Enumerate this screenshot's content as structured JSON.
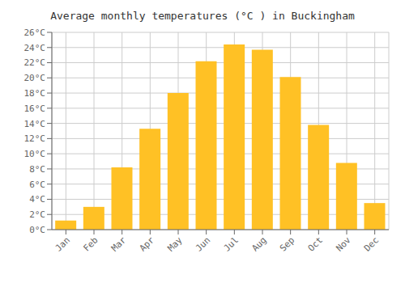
{
  "chart_data": {
    "type": "bar",
    "title": "Average monthly temperatures (°C ) in Buckingham",
    "categories": [
      "Jan",
      "Feb",
      "Mar",
      "Apr",
      "May",
      "Jun",
      "Jul",
      "Aug",
      "Sep",
      "Oct",
      "Nov",
      "Dec"
    ],
    "values": [
      1.2,
      3.0,
      8.2,
      13.3,
      18.0,
      22.2,
      24.4,
      23.7,
      20.1,
      13.8,
      8.8,
      3.5
    ],
    "color": "#FFC125",
    "ylim": [
      0,
      26
    ],
    "yticks": [
      {
        "value": 0,
        "label": "0°C"
      },
      {
        "value": 2,
        "label": "2°C"
      },
      {
        "value": 4,
        "label": "4°C"
      },
      {
        "value": 6,
        "label": "6°C"
      },
      {
        "value": 8,
        "label": "8°C"
      },
      {
        "value": 10,
        "label": "10°C"
      },
      {
        "value": 12,
        "label": "12°C"
      },
      {
        "value": 14,
        "label": "14°C"
      },
      {
        "value": 16,
        "label": "16°C"
      },
      {
        "value": 18,
        "label": "18°C"
      },
      {
        "value": 20,
        "label": "20°C"
      },
      {
        "value": 22,
        "label": "22°C"
      },
      {
        "value": 24,
        "label": "24°C"
      },
      {
        "value": 26,
        "label": "26°C"
      }
    ],
    "grid": true
  }
}
